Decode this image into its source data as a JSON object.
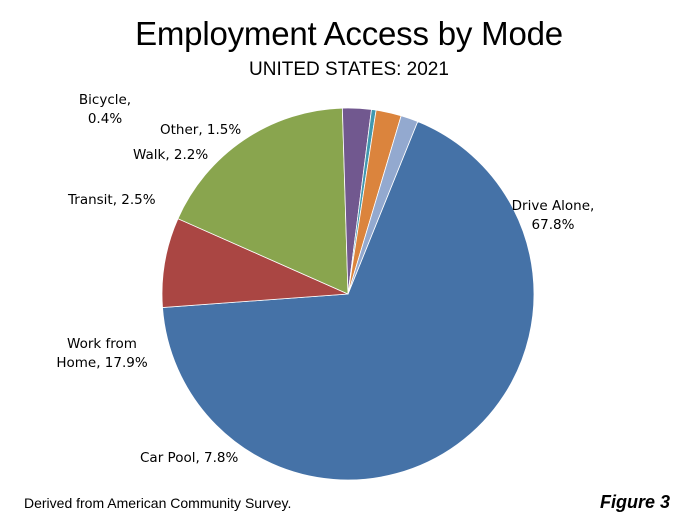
{
  "chart_data": {
    "type": "pie",
    "title": "Employment Access by Mode",
    "subtitle": "UNITED STATES: 2021",
    "categories": [
      "Drive Alone",
      "Car Pool",
      "Work from Home",
      "Transit",
      "Bicycle",
      "Walk",
      "Other"
    ],
    "values": [
      67.8,
      7.8,
      17.9,
      2.5,
      0.4,
      2.2,
      1.5
    ],
    "label_lines": [
      [
        "Drive Alone,",
        "67.8%"
      ],
      [
        "Car Pool, 7.8%"
      ],
      [
        "Work from",
        "Home, 17.9%"
      ],
      [
        "Transit, 2.5%"
      ],
      [
        "Bicycle,",
        "0.4%"
      ],
      [
        "Walk, 2.2%"
      ],
      [
        "Other, 1.5%"
      ]
    ],
    "colors": [
      "#4572a7",
      "#aa4643",
      "#89a54e",
      "#71588f",
      "#4198af",
      "#db843d",
      "#93a9cf"
    ],
    "start_angle_deg": 22,
    "direction": "clockwise",
    "legend": "none"
  },
  "footer": {
    "source": "Derived from American Community Survey.",
    "figure_label": "Figure 3"
  }
}
